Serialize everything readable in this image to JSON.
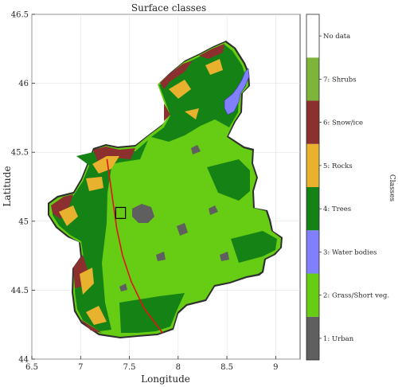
{
  "chart_data": {
    "type": "heatmap",
    "title": "Surface classes",
    "xlabel": "Longitude",
    "ylabel": "Latitude",
    "xlim": [
      6.5,
      9.25
    ],
    "ylim": [
      44,
      46.5
    ],
    "xticks": [
      "6.5",
      "7",
      "7.5",
      "8",
      "8.5",
      "9"
    ],
    "yticks": [
      "44",
      "44.5",
      "45",
      "45.5",
      "46",
      "46.5"
    ],
    "grid": true,
    "colorbar": {
      "title": "Classes",
      "classes": [
        {
          "label": "1: Urban",
          "color": "#5f5f5f"
        },
        {
          "label": "2: Grass/Short veg.",
          "color": "#66cc14"
        },
        {
          "label": "3: Water bodies",
          "color": "#8080ff"
        },
        {
          "label": "4: Trees",
          "color": "#148214"
        },
        {
          "label": "5: Rocks",
          "color": "#e8b12e"
        },
        {
          "label": "6: Snow/ice",
          "color": "#8c2f2f"
        },
        {
          "label": "7: Shrubs",
          "color": "#7fb43a"
        },
        {
          "label": "No data",
          "color": "#ffffff"
        }
      ]
    },
    "track": [
      [
        7.27,
        45.45
      ],
      [
        7.32,
        45.2
      ],
      [
        7.37,
        44.95
      ],
      [
        7.43,
        44.75
      ],
      [
        7.52,
        44.56
      ],
      [
        7.65,
        44.37
      ],
      [
        7.84,
        44.19
      ]
    ],
    "box": {
      "lon": [
        7.36,
        7.46
      ],
      "lat": [
        45.02,
        45.1
      ]
    }
  }
}
